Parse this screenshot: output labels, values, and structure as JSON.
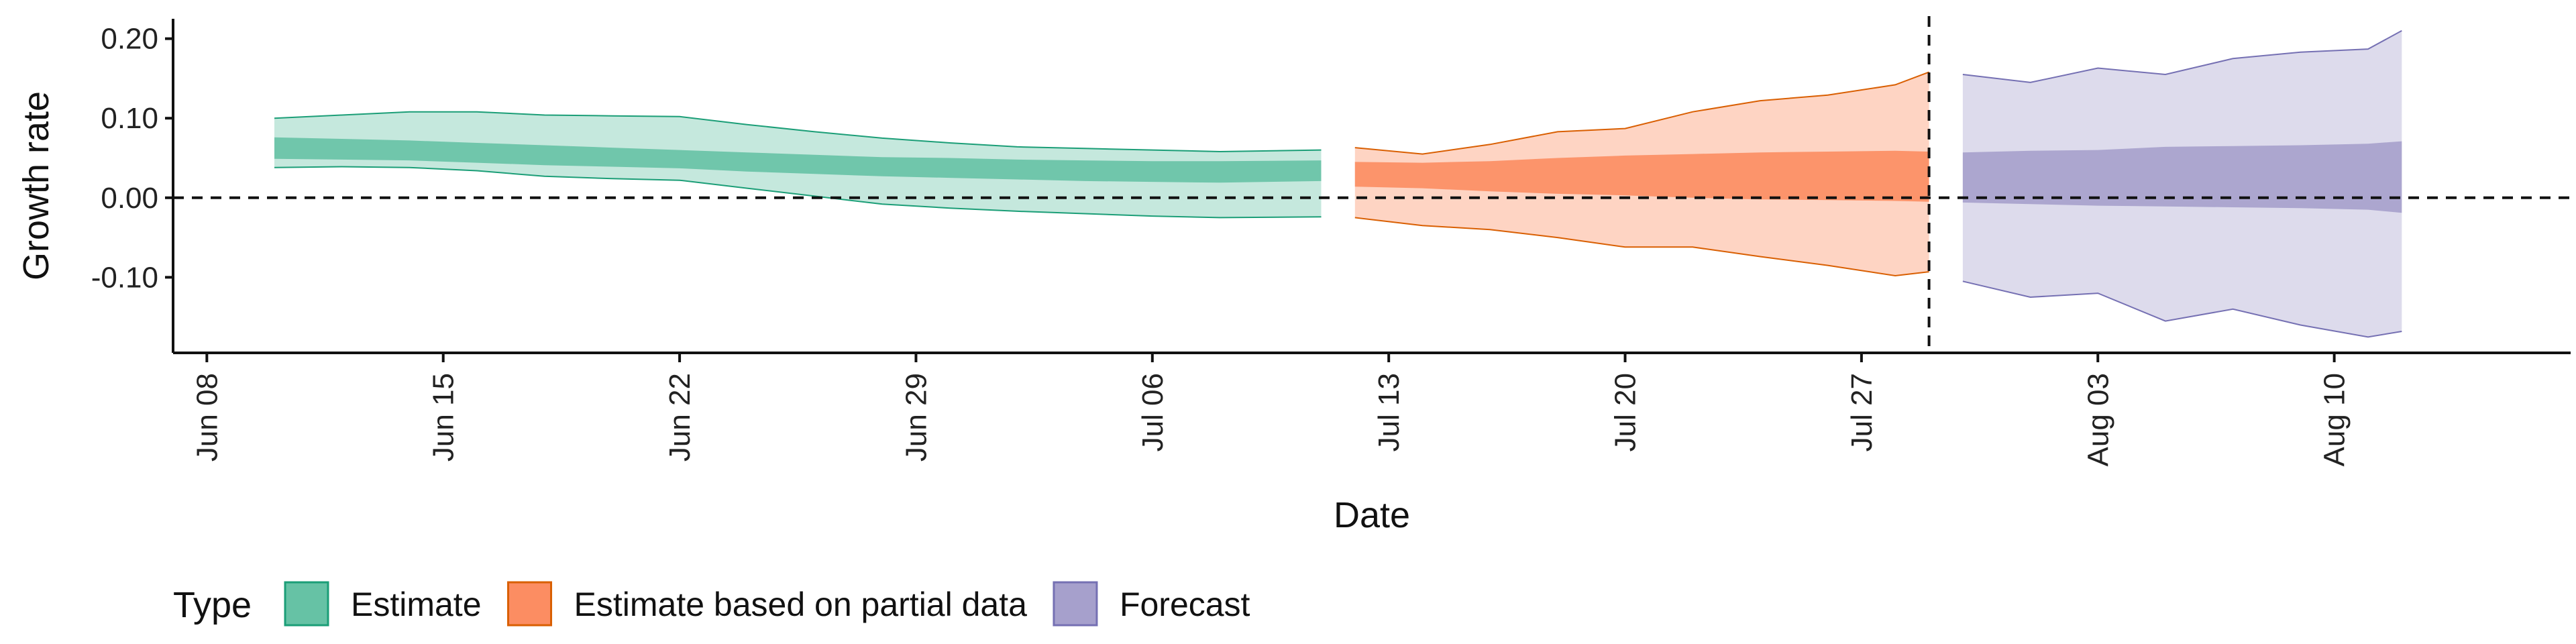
{
  "chart_data": {
    "type": "area",
    "xlabel": "Date",
    "ylabel": "Growth rate",
    "xlim": [
      "2020-06-07",
      "2020-08-17"
    ],
    "ylim": [
      -0.195,
      0.225
    ],
    "y_ticks": [
      -0.1,
      0.0,
      0.1,
      0.2
    ],
    "y_tick_labels": [
      "-0.10",
      "0.00",
      "0.10",
      "0.20"
    ],
    "x_ticks": [
      "2020-06-08",
      "2020-06-15",
      "2020-06-22",
      "2020-06-29",
      "2020-07-06",
      "2020-07-13",
      "2020-07-20",
      "2020-07-27",
      "2020-08-03",
      "2020-08-10"
    ],
    "x_tick_labels": [
      "Jun 08",
      "Jun 15",
      "Jun 22",
      "Jun 29",
      "Jul 06",
      "Jul 13",
      "Jul 20",
      "Jul 27",
      "Aug 03",
      "Aug 10"
    ],
    "reference_lines": {
      "horizontal_y": 0.0,
      "vertical_date": "2020-07-29"
    },
    "legend": {
      "title": "Type",
      "position": "bottom-left"
    },
    "series": [
      {
        "name": "Estimate",
        "fill_color": "#66c2a5",
        "line_color": "#1b9e77",
        "dates": [
          "2020-06-10",
          "2020-06-12",
          "2020-06-14",
          "2020-06-16",
          "2020-06-18",
          "2020-06-20",
          "2020-06-22",
          "2020-06-24",
          "2020-06-26",
          "2020-06-28",
          "2020-06-30",
          "2020-07-02",
          "2020-07-04",
          "2020-07-06",
          "2020-07-08",
          "2020-07-11"
        ],
        "upper90": [
          0.1,
          0.104,
          0.108,
          0.108,
          0.104,
          0.103,
          0.102,
          0.092,
          0.083,
          0.075,
          0.069,
          0.064,
          0.062,
          0.06,
          0.058,
          0.06
        ],
        "upper50": [
          0.076,
          0.074,
          0.072,
          0.069,
          0.066,
          0.063,
          0.06,
          0.057,
          0.054,
          0.051,
          0.05,
          0.048,
          0.047,
          0.046,
          0.046,
          0.047
        ],
        "lower50": [
          0.049,
          0.048,
          0.047,
          0.044,
          0.041,
          0.039,
          0.037,
          0.033,
          0.03,
          0.027,
          0.025,
          0.023,
          0.021,
          0.02,
          0.019,
          0.021
        ],
        "lower90": [
          0.038,
          0.039,
          0.038,
          0.034,
          0.027,
          0.024,
          0.022,
          0.012,
          0.002,
          -0.008,
          -0.013,
          -0.017,
          -0.02,
          -0.023,
          -0.025,
          -0.024
        ]
      },
      {
        "name": "Estimate based on partial data",
        "fill_color": "#fc8d62",
        "line_color": "#d95f02",
        "dates": [
          "2020-07-12",
          "2020-07-14",
          "2020-07-16",
          "2020-07-18",
          "2020-07-20",
          "2020-07-22",
          "2020-07-24",
          "2020-07-26",
          "2020-07-28",
          "2020-07-29"
        ],
        "upper90": [
          0.063,
          0.055,
          0.067,
          0.083,
          0.087,
          0.108,
          0.122,
          0.129,
          0.142,
          0.158
        ],
        "upper50": [
          0.045,
          0.044,
          0.046,
          0.05,
          0.053,
          0.055,
          0.057,
          0.058,
          0.059,
          0.058
        ],
        "lower50": [
          0.014,
          0.012,
          0.008,
          0.005,
          0.003,
          0.0,
          -0.002,
          -0.003,
          -0.004,
          -0.005
        ],
        "lower90": [
          -0.025,
          -0.035,
          -0.04,
          -0.05,
          -0.062,
          -0.062,
          -0.074,
          -0.085,
          -0.098,
          -0.093
        ]
      },
      {
        "name": "Forecast",
        "fill_color": "#a6a0cc",
        "line_color": "#7570b3",
        "dates": [
          "2020-07-30",
          "2020-08-01",
          "2020-08-03",
          "2020-08-05",
          "2020-08-07",
          "2020-08-09",
          "2020-08-11",
          "2020-08-12"
        ],
        "upper90": [
          0.155,
          0.145,
          0.163,
          0.155,
          0.175,
          0.183,
          0.187,
          0.21
        ],
        "upper50": [
          0.057,
          0.059,
          0.06,
          0.064,
          0.065,
          0.066,
          0.068,
          0.071
        ],
        "lower50": [
          -0.006,
          -0.008,
          -0.01,
          -0.011,
          -0.012,
          -0.013,
          -0.015,
          -0.019
        ],
        "lower90": [
          -0.105,
          -0.125,
          -0.12,
          -0.155,
          -0.14,
          -0.16,
          -0.175,
          -0.168
        ]
      }
    ]
  }
}
